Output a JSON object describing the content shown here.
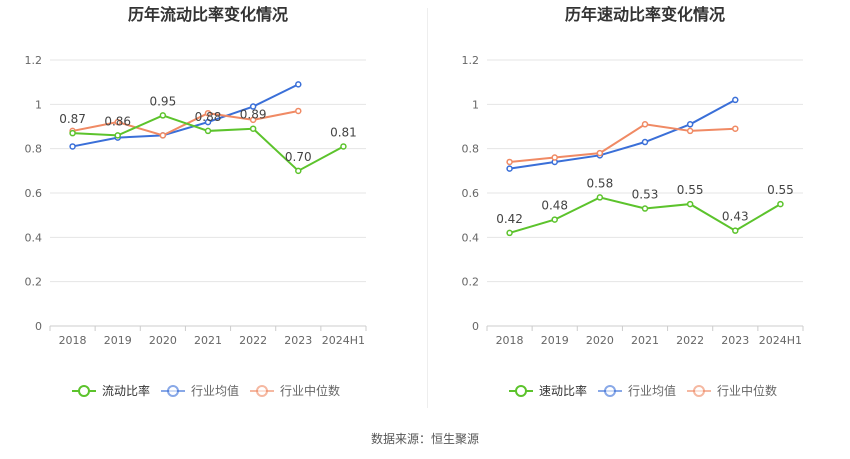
{
  "source": "数据来源：恒生聚源",
  "colors": {
    "company": "#5cc32c",
    "avg": "#3a6fd8",
    "median": "#f08a64",
    "grid": "#e4e4e4",
    "axis": "#cccccc",
    "text": "#666666",
    "title": "#333333"
  },
  "chart_data": [
    {
      "type": "line",
      "title": "历年流动比率变化情况",
      "categories": [
        "2018",
        "2019",
        "2020",
        "2021",
        "2022",
        "2023",
        "2024H1"
      ],
      "ylim": [
        0,
        1.2
      ],
      "yticks": [
        "0",
        "0.2",
        "0.4",
        "0.6",
        "0.8",
        "1",
        "1.2"
      ],
      "legend_position": "bottom",
      "series": [
        {
          "name": "流动比率",
          "key": "company",
          "values": [
            0.87,
            0.86,
            0.95,
            0.88,
            0.89,
            0.7,
            0.81
          ],
          "labels": [
            "0.87",
            "0.86",
            "0.95",
            "0.88",
            "0.89",
            "0.70",
            "0.81"
          ]
        },
        {
          "name": "行业均值",
          "key": "avg",
          "values": [
            0.81,
            0.85,
            0.86,
            0.92,
            0.99,
            1.09,
            null
          ]
        },
        {
          "name": "行业中位数",
          "key": "median",
          "values": [
            0.88,
            0.92,
            0.86,
            0.96,
            0.93,
            0.97,
            null
          ]
        }
      ]
    },
    {
      "type": "line",
      "title": "历年速动比率变化情况",
      "categories": [
        "2018",
        "2019",
        "2020",
        "2021",
        "2022",
        "2023",
        "2024H1"
      ],
      "ylim": [
        0,
        1.2
      ],
      "yticks": [
        "0",
        "0.2",
        "0.4",
        "0.6",
        "0.8",
        "1",
        "1.2"
      ],
      "legend_position": "bottom",
      "series": [
        {
          "name": "速动比率",
          "key": "company",
          "values": [
            0.42,
            0.48,
            0.58,
            0.53,
            0.55,
            0.43,
            0.55
          ],
          "labels": [
            "0.42",
            "0.48",
            "0.58",
            "0.53",
            "0.55",
            "0.43",
            "0.55"
          ]
        },
        {
          "name": "行业均值",
          "key": "avg",
          "values": [
            0.71,
            0.74,
            0.77,
            0.83,
            0.91,
            1.02,
            null
          ]
        },
        {
          "name": "行业中位数",
          "key": "median",
          "values": [
            0.74,
            0.76,
            0.78,
            0.91,
            0.88,
            0.89,
            null
          ]
        }
      ]
    }
  ]
}
